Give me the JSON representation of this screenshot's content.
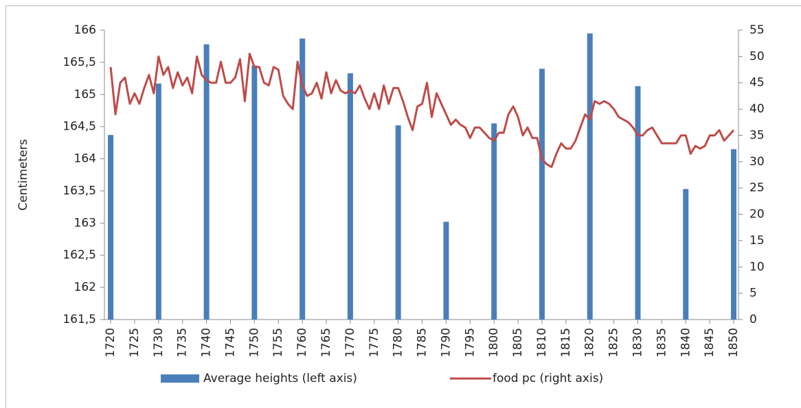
{
  "chart_data": {
    "type": "bar",
    "y_label": "Centimeters",
    "xlim": [
      1718.7,
      1851
    ],
    "xticks": [
      1720,
      1725,
      1730,
      1735,
      1740,
      1745,
      1750,
      1755,
      1760,
      1765,
      1770,
      1775,
      1780,
      1785,
      1790,
      1795,
      1800,
      1805,
      1810,
      1815,
      1820,
      1825,
      1830,
      1835,
      1840,
      1845,
      1850
    ],
    "ylim": [
      161.5,
      166
    ],
    "yticks": [
      {
        "value": 161.5,
        "label": "161,5"
      },
      162,
      {
        "value": 162.5,
        "label": "162,5"
      },
      163,
      {
        "value": 163.5,
        "label": "163,5"
      },
      164,
      {
        "value": 164.5,
        "label": "164,5"
      },
      165,
      {
        "value": 165.5,
        "label": "165,5"
      },
      166
    ],
    "y2lim": [
      0,
      55
    ],
    "y2ticks": [
      0,
      5,
      10,
      15,
      20,
      25,
      30,
      35,
      40,
      45,
      50,
      55
    ],
    "legend": "bottom",
    "series": [
      {
        "name": "Average heights (left axis)",
        "type": "bar",
        "color": "#4a7ebb",
        "x": [
          1720,
          1730,
          1740,
          1750,
          1760,
          1770,
          1780,
          1790,
          1800,
          1810,
          1820,
          1830,
          1840,
          1850
        ],
        "values": [
          164.37,
          165.17,
          165.78,
          165.45,
          165.87,
          165.33,
          164.52,
          163.02,
          164.55,
          165.4,
          165.95,
          165.13,
          163.53,
          164.15
        ]
      },
      {
        "name": "food pc (right axis)",
        "type": "line",
        "axis": "y2",
        "color": "#be4b48",
        "x": [
          1720,
          1721,
          1722,
          1723,
          1724,
          1725,
          1726,
          1727,
          1728,
          1729,
          1730,
          1731,
          1732,
          1733,
          1734,
          1735,
          1736,
          1737,
          1738,
          1739,
          1740,
          1741,
          1742,
          1743,
          1744,
          1745,
          1746,
          1747,
          1748,
          1749,
          1750,
          1751,
          1752,
          1753,
          1754,
          1755,
          1756,
          1757,
          1758,
          1759,
          1760,
          1761,
          1762,
          1763,
          1764,
          1765,
          1766,
          1767,
          1768,
          1769,
          1770,
          1771,
          1772,
          1773,
          1774,
          1775,
          1776,
          1777,
          1778,
          1779,
          1780,
          1781,
          1782,
          1783,
          1784,
          1785,
          1786,
          1787,
          1788,
          1789,
          1790,
          1791,
          1792,
          1793,
          1794,
          1795,
          1796,
          1797,
          1798,
          1799,
          1800,
          1801,
          1802,
          1803,
          1804,
          1805,
          1806,
          1807,
          1808,
          1809,
          1810,
          1811,
          1812,
          1813,
          1814,
          1815,
          1816,
          1817,
          1818,
          1819,
          1820,
          1821,
          1822,
          1823,
          1824,
          1825,
          1826,
          1827,
          1828,
          1829,
          1830,
          1831,
          1832,
          1833,
          1834,
          1835,
          1836,
          1837,
          1838,
          1839,
          1840,
          1841,
          1842,
          1843,
          1844,
          1845,
          1846,
          1847,
          1848,
          1849,
          1850
        ],
        "values": [
          48,
          39,
          45,
          46,
          41,
          43,
          41,
          44,
          46.5,
          43,
          50,
          46.5,
          48,
          44,
          47,
          44.5,
          46,
          43,
          50,
          46.5,
          45.5,
          45,
          45,
          49,
          45,
          45,
          46,
          49.5,
          41.5,
          50.5,
          48,
          48,
          45,
          44.5,
          48,
          47.5,
          42.5,
          41,
          40,
          49,
          44.5,
          42.5,
          43,
          45,
          42,
          47,
          43,
          45.5,
          43.5,
          43,
          43.5,
          43,
          44.5,
          42,
          40,
          43,
          40,
          44.5,
          41,
          44,
          44,
          41.5,
          38.5,
          36,
          40.5,
          41,
          45,
          38.5,
          43,
          41,
          39,
          37,
          38,
          37,
          36.5,
          34.5,
          36.5,
          36.5,
          35.5,
          34.5,
          34,
          35.5,
          35.5,
          39,
          40.5,
          38.5,
          35,
          36.5,
          34.5,
          34.5,
          30.5,
          29.5,
          29,
          31.5,
          33.5,
          32.5,
          32.5,
          34,
          36.5,
          39,
          38,
          41.5,
          41,
          41.5,
          41,
          40,
          38.5,
          38,
          37.5,
          36.5,
          35,
          35,
          36,
          36.5,
          35,
          33.5,
          33.5,
          33.5,
          33.5,
          35,
          35,
          31.5,
          33,
          32.5,
          33,
          35,
          35,
          36,
          34,
          35,
          36
        ]
      }
    ]
  }
}
